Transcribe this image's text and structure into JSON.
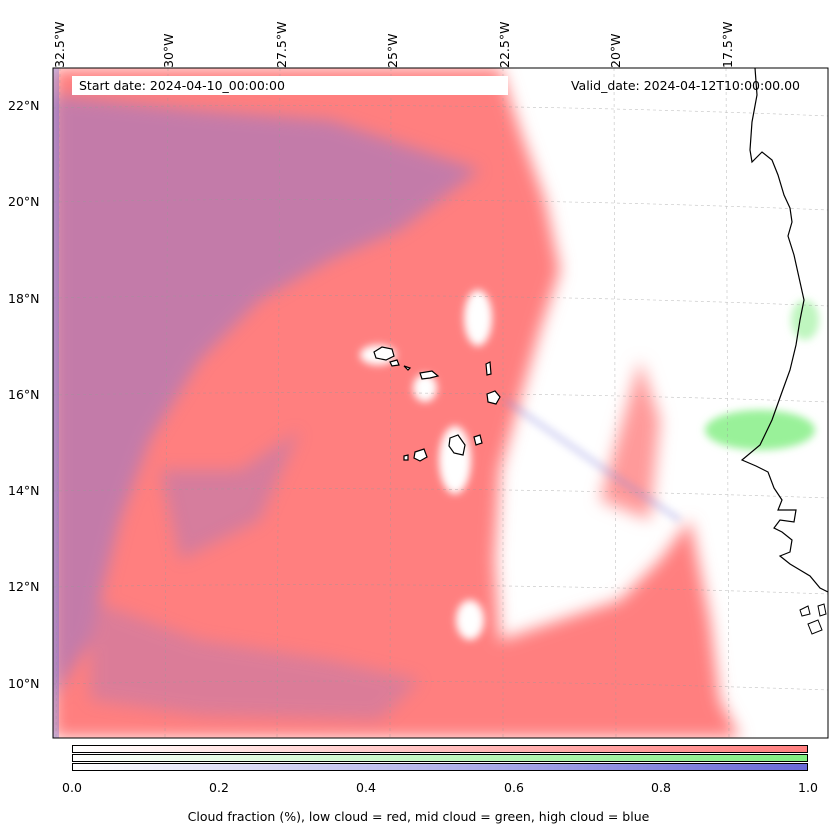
{
  "map": {
    "start_date": "Start date: 2024-04-10_00:00:00",
    "valid_date": "Valid_date: 2024-04-12T10:00:00.00",
    "lon_labels": [
      "32.5°W",
      "30°W",
      "27.5°W",
      "25°W",
      "22.5°W",
      "20°W",
      "17.5°W"
    ],
    "lat_labels": [
      "22°N",
      "20°N",
      "18°N",
      "16°N",
      "14°N",
      "12°N",
      "10°N"
    ],
    "colors": {
      "low_cloud": "#ff7f7f",
      "mid_cloud": "#80ee80",
      "high_cloud": "#6a6ad8",
      "mixed_cloud": "#b07ab8"
    }
  },
  "colorbar": {
    "ticks": [
      "0.0",
      "0.2",
      "0.4",
      "0.6",
      "0.8",
      "1.0"
    ],
    "label": "Cloud fraction (%), low cloud = red, mid cloud = green, high cloud = blue",
    "range": [
      0.0,
      1.0
    ]
  }
}
